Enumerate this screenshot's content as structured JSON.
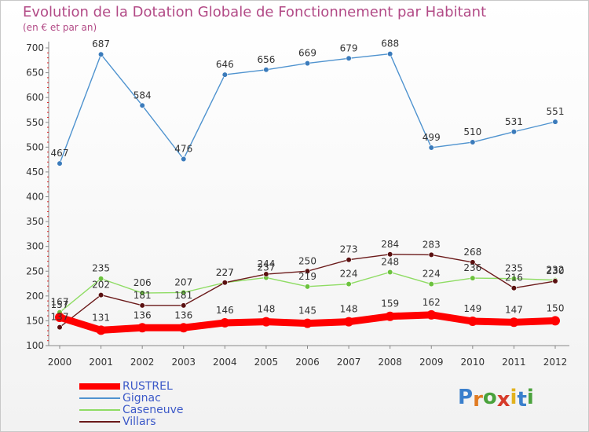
{
  "title": "Evolution de la Dotation Globale de Fonctionnement par Habitant",
  "subtitle": "(en € et par an)",
  "logo": {
    "letters": [
      "P",
      "r",
      "o",
      "x",
      "i",
      "t",
      "i"
    ],
    "colors": [
      "#3a7fcc",
      "#e07b22",
      "#4aa23c",
      "#d63b2a",
      "#e2b21e",
      "#3a7fcc",
      "#4aa23c"
    ]
  },
  "chart_data": {
    "type": "line",
    "x": [
      "2000",
      "2001",
      "2002",
      "2003",
      "2004",
      "2005",
      "2006",
      "2007",
      "2008",
      "2009",
      "2010",
      "2011",
      "2012"
    ],
    "ylim": [
      100,
      700
    ],
    "yticks": [
      100,
      150,
      200,
      250,
      300,
      350,
      400,
      450,
      500,
      550,
      600,
      650,
      700
    ],
    "grid": false,
    "legend_position": "bottom-left",
    "series": [
      {
        "name": "RUSTREL",
        "color": "#ff0000",
        "values": [
          157,
          131,
          136,
          136,
          146,
          148,
          145,
          148,
          159,
          162,
          149,
          147,
          150
        ]
      },
      {
        "name": "Gignac",
        "color": "#4f93cf",
        "values": [
          467,
          687,
          584,
          476,
          646,
          656,
          669,
          679,
          688,
          499,
          510,
          531,
          551
        ]
      },
      {
        "name": "Caseneuve",
        "color": "#8fdc64",
        "values": [
          167,
          235,
          206,
          207,
          227,
          237,
          219,
          224,
          248,
          224,
          236,
          235,
          232
        ]
      },
      {
        "name": "Villars",
        "color": "#6b1a1a",
        "values": [
          137,
          202,
          181,
          181,
          227,
          244,
          250,
          273,
          284,
          283,
          268,
          216,
          230
        ]
      }
    ]
  }
}
